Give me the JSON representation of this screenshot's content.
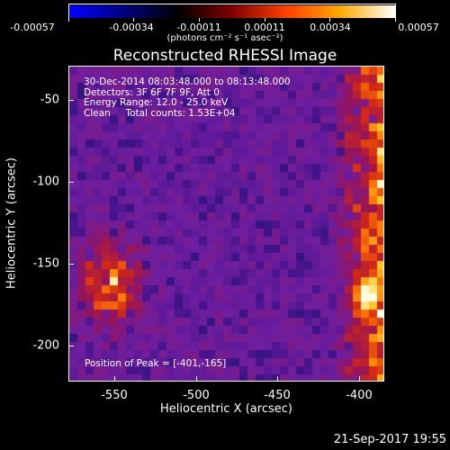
{
  "colorbar": {
    "ticks": [
      "-0.00057",
      "-0.00034",
      "-0.00011",
      "0.00011",
      "0.00034",
      "0.00057"
    ],
    "unit_label": "(photons cm⁻² s⁻¹ asec⁻²)",
    "colors": [
      "#0000ff",
      "#000080",
      "#000000",
      "#800000",
      "#ff4000",
      "#ffaa00",
      "#ffffff"
    ]
  },
  "title": "Reconstructed RHESSI Image",
  "annotations": [
    "30-Dec-2014 08:03:48.000 to 08:13:48.000",
    "Detectors: 3F 6F 7F 9F, Att 0",
    "Energy Range: 12.0 - 25.0 keV",
    "Clean     Total counts: 1.53E+04"
  ],
  "peak_text": "Position of Peak = [-401,-165]",
  "x_axis": {
    "label": "Heliocentric X (arcsec)",
    "ticks": [
      "-550",
      "-500",
      "-450",
      "-400"
    ]
  },
  "y_axis": {
    "label": "Heliocentric Y (arcsec)",
    "ticks": [
      "-50",
      "-100",
      "-150",
      "-200"
    ]
  },
  "timestamp": "21-Sep-2017 19:55"
}
